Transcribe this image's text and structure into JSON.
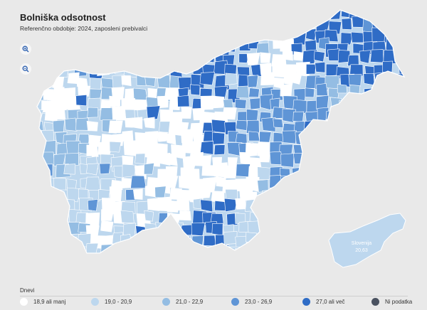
{
  "header": {
    "title": "Bolniška odsotnost",
    "subtitle": "Referenčno obdobje: 2024, zaposleni prebivalci"
  },
  "controls": {
    "zoom_in_icon": "zoom-in-icon",
    "zoom_out_icon": "zoom-out-icon"
  },
  "inset": {
    "name": "Slovenija",
    "value": "20,63",
    "color": "#bdd7ee"
  },
  "legend": {
    "title": "Dnevi",
    "items": [
      {
        "label": "18,9 ali manj",
        "color": "#ffffff"
      },
      {
        "label": "19,0 - 20,9",
        "color": "#bdd7ee"
      },
      {
        "label": "21,0 - 22,9",
        "color": "#94bde3"
      },
      {
        "label": "23,0 - 26,9",
        "color": "#5f95d6"
      },
      {
        "label": "27,0 ali več",
        "color": "#2f6cc6"
      },
      {
        "label": "Ni podatka",
        "color": "#4a5260"
      }
    ]
  },
  "map_background": "#e9e9e9"
}
